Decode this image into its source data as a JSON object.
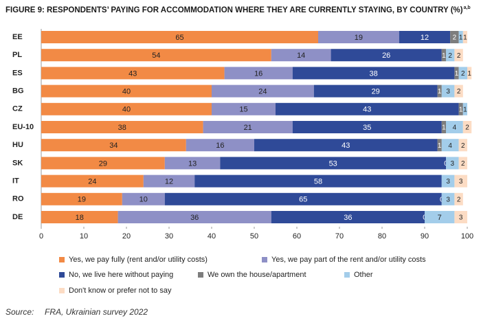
{
  "chart_data": {
    "type": "stacked-bar-horizontal",
    "title": "FIGURE 9:    RESPONDENTS’ PAYING FOR ACCOMMODATION WHERE THEY ARE CURRENTLY STAYING, BY COUNTRY (%)",
    "title_note": "a,b",
    "source_label": "Source:",
    "source": "FRA, Ukrainian survey 2022",
    "categories": [
      "EE",
      "PL",
      "ES",
      "BG",
      "CZ",
      "EU-10",
      "HU",
      "SK",
      "IT",
      "RO",
      "DE"
    ],
    "series": [
      {
        "name": "Yes, we pay fully (rent and/or utility costs)",
        "color": "#f28a45",
        "values": [
          65,
          54,
          43,
          40,
          40,
          38,
          34,
          29,
          24,
          19,
          18
        ]
      },
      {
        "name": "Yes, we pay part of the rent and/or utility costs",
        "color": "#8e90c6",
        "values": [
          19,
          14,
          16,
          24,
          15,
          21,
          16,
          13,
          12,
          10,
          36
        ]
      },
      {
        "name": "No, we live here without paying",
        "color": "#2f4a98",
        "values": [
          12,
          26,
          38,
          29,
          43,
          35,
          43,
          53,
          58,
          65,
          36
        ]
      },
      {
        "name": "We own the house/apartment",
        "color": "#7d7d7d",
        "values": [
          2,
          1,
          1,
          1,
          1,
          1,
          1,
          0,
          null,
          0,
          0
        ]
      },
      {
        "name": "Other",
        "color": "#a3cdea",
        "values": [
          1,
          2,
          2,
          3,
          1,
          4,
          4,
          3,
          3,
          3,
          7
        ]
      },
      {
        "name": "Don't know or prefer not to say",
        "color": "#fcdcc4",
        "values": [
          1,
          2,
          1,
          2,
          null,
          2,
          2,
          2,
          3,
          2,
          3
        ]
      }
    ],
    "xlim": [
      0,
      100
    ],
    "xticks": [
      0,
      10,
      20,
      30,
      40,
      50,
      60,
      70,
      80,
      90,
      100
    ]
  }
}
